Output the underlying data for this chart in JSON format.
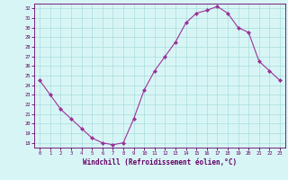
{
  "x": [
    0,
    1,
    2,
    3,
    4,
    5,
    6,
    7,
    8,
    9,
    10,
    11,
    12,
    13,
    14,
    15,
    16,
    17,
    18,
    19,
    20,
    21,
    22,
    23
  ],
  "y": [
    24.5,
    23.0,
    21.5,
    20.5,
    19.5,
    18.5,
    18.0,
    17.8,
    18.0,
    20.5,
    23.5,
    25.5,
    27.0,
    28.5,
    30.5,
    31.5,
    31.8,
    32.2,
    31.5,
    30.0,
    29.5,
    26.5,
    25.5,
    24.5
  ],
  "line_color": "#993399",
  "marker": "D",
  "marker_size": 2,
  "bg_color": "#d8f5f5",
  "grid_color": "#aadddd",
  "xlabel": "Windchill (Refroidissement éolien,°C)",
  "xlabel_color": "#660066",
  "tick_color": "#660066",
  "ylim": [
    17.5,
    32.5
  ],
  "yticks": [
    18,
    19,
    20,
    21,
    22,
    23,
    24,
    25,
    26,
    27,
    28,
    29,
    30,
    31,
    32
  ],
  "xticks": [
    0,
    1,
    2,
    3,
    4,
    5,
    6,
    7,
    8,
    9,
    10,
    11,
    12,
    13,
    14,
    15,
    16,
    17,
    18,
    19,
    20,
    21,
    22,
    23
  ],
  "spine_color": "#660066"
}
